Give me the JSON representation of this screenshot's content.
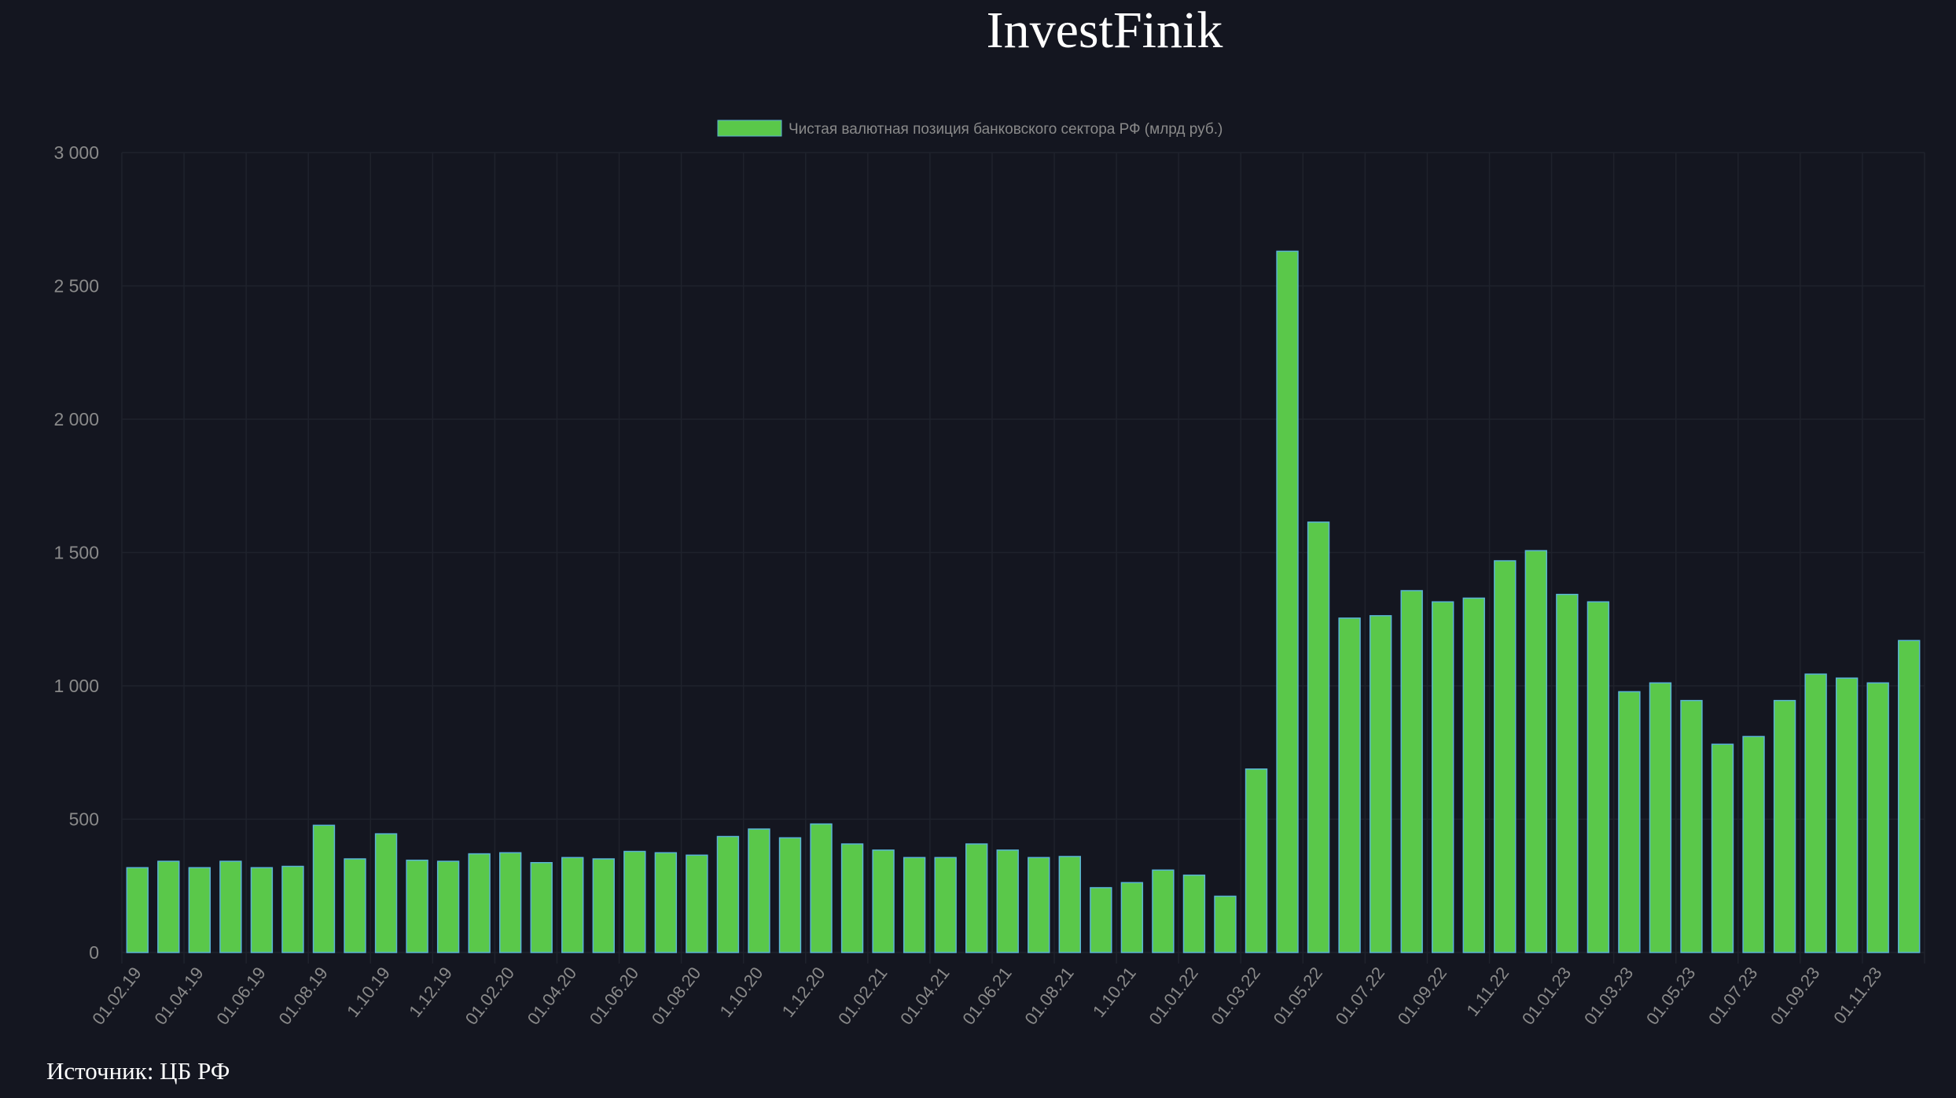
{
  "chart_data": {
    "type": "bar",
    "title": "InvestFinik",
    "legend": "Чистая валютная позиция банковского сектора РФ (млрд руб.)",
    "legend_placement": "top-center",
    "source": "Источник: ЦБ РФ",
    "ylim": [
      0,
      3000
    ],
    "yticks": [
      0,
      500,
      1000,
      1500,
      2000,
      2500,
      3000
    ],
    "ytick_labels": [
      "0",
      "500",
      "1 000",
      "1 500",
      "2 000",
      "2 500",
      "3 000"
    ],
    "tick_labels": [
      "01.02.19",
      "01.04.19",
      "01.06.19",
      "01.08.19",
      "1.10.19",
      "1.12.19",
      "01.02.20",
      "01.04.20",
      "01.06.20",
      "01.08.20",
      "1.10.20",
      "1.12.20",
      "01.02.21",
      "01.04.21",
      "01.06.21",
      "01.08.21",
      "1.10.21",
      "01.01.22",
      "01.03.22",
      "01.05.22",
      "01.07.22",
      "01.09.22",
      "1.11.22",
      "01.01.23",
      "01.03.23",
      "01.05.23",
      "01.07.23",
      "01.09.23",
      "01.11.23"
    ],
    "tick_every": 2,
    "values": [
      318,
      342,
      318,
      342,
      318,
      323,
      477,
      351,
      445,
      346,
      342,
      370,
      374,
      337,
      356,
      351,
      379,
      374,
      365,
      435,
      463,
      430,
      482,
      407,
      384,
      356,
      356,
      407,
      384,
      356,
      360,
      243,
      262,
      309,
      290,
      211,
      688,
      2630,
      1614,
      1254,
      1263,
      1357,
      1315,
      1329,
      1469,
      1507,
      1343,
      1315,
      978,
      1011,
      945,
      781,
      810,
      945,
      1044,
      1029,
      1011,
      1170
    ],
    "grid": true,
    "colors": {
      "bar": "#5ac84a",
      "bar_border": "#5ab4d6",
      "grid": "#1f222c",
      "background": "#141620"
    }
  }
}
